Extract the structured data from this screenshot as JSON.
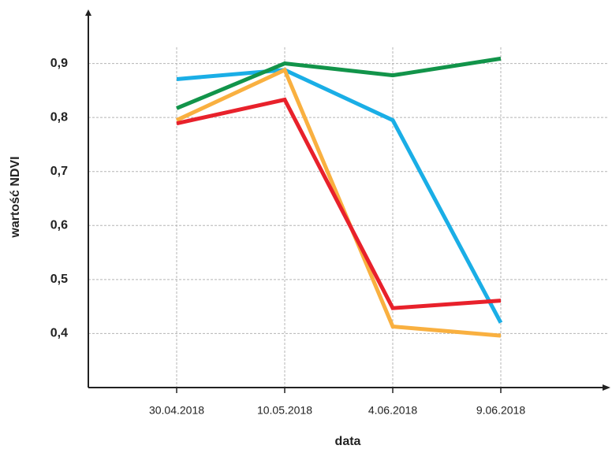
{
  "chart_data": {
    "type": "line",
    "xlabel": "data",
    "ylabel": "wartość NDVI",
    "categories": [
      "30.04.2018",
      "10.05.2018",
      "4.06.2018",
      "9.06.2018"
    ],
    "series": [
      {
        "color": "#1aaee6",
        "values": [
          0.871,
          0.888,
          0.795,
          0.42
        ]
      },
      {
        "color": "#f9b040",
        "values": [
          0.795,
          0.888,
          0.413,
          0.396
        ]
      },
      {
        "color": "#e8212b",
        "values": [
          0.789,
          0.833,
          0.447,
          0.461
        ]
      },
      {
        "color": "#12944a",
        "values": [
          0.817,
          0.9,
          0.878,
          0.909
        ]
      }
    ],
    "ylim": [
      0.3,
      1.0
    ],
    "yticks": [
      {
        "value": 0.4,
        "label": "0,4"
      },
      {
        "value": 0.5,
        "label": "0,5"
      },
      {
        "value": 0.6,
        "label": "0,6"
      },
      {
        "value": 0.7,
        "label": "0,7"
      },
      {
        "value": 0.8,
        "label": "0,8"
      },
      {
        "value": 0.9,
        "label": "0,9"
      }
    ],
    "grid": true
  }
}
